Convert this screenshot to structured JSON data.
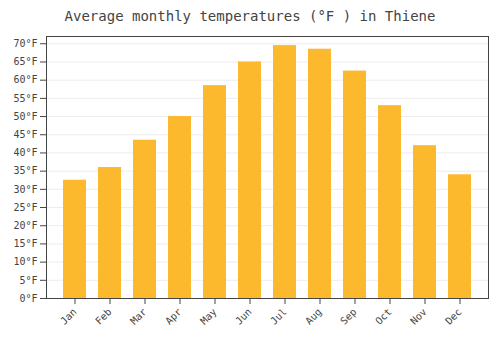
{
  "chart_data": {
    "type": "bar",
    "title": "Average monthly temperatures (°F ) in Thiene",
    "categories": [
      "Jan",
      "Feb",
      "Mar",
      "Apr",
      "May",
      "Jun",
      "Jul",
      "Aug",
      "Sep",
      "Oct",
      "Nov",
      "Dec"
    ],
    "values": [
      32.5,
      36.0,
      43.5,
      50.0,
      58.5,
      65.0,
      69.5,
      68.5,
      62.5,
      53.0,
      42.0,
      34.0
    ],
    "color": "#FDB92E",
    "ylim": [
      0,
      72
    ],
    "yticks": [
      {
        "value": 0,
        "label": "0°F"
      },
      {
        "value": 5,
        "label": "5°F"
      },
      {
        "value": 10,
        "label": "10°F"
      },
      {
        "value": 15,
        "label": "15°F"
      },
      {
        "value": 20,
        "label": "20°F"
      },
      {
        "value": 25,
        "label": "25°F"
      },
      {
        "value": 30,
        "label": "30°F"
      },
      {
        "value": 35,
        "label": "35°F"
      },
      {
        "value": 40,
        "label": "40°F"
      },
      {
        "value": 45,
        "label": "45°F"
      },
      {
        "value": 50,
        "label": "50°F"
      },
      {
        "value": 55,
        "label": "55°F"
      },
      {
        "value": 60,
        "label": "60°F"
      },
      {
        "value": 65,
        "label": "65°F"
      },
      {
        "value": 70,
        "label": "70°F"
      }
    ],
    "grid": true
  }
}
